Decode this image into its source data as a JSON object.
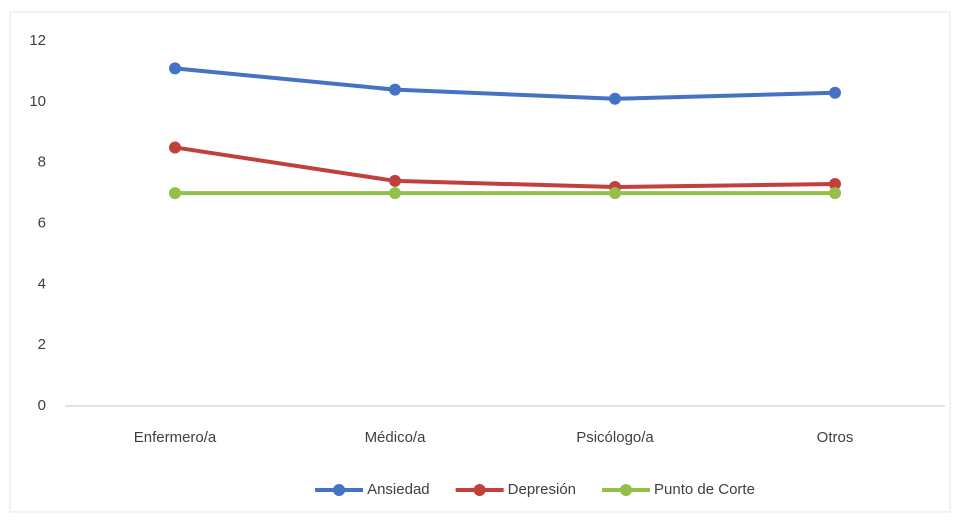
{
  "chart_data": {
    "type": "line",
    "categories": [
      "Enfermero/a",
      "Médico/a",
      "Psicólogo/a",
      "Otros"
    ],
    "series": [
      {
        "name": "Ansiedad",
        "color": "#4472c4",
        "values": [
          11.1,
          10.4,
          10.1,
          10.3
        ]
      },
      {
        "name": "Depresión",
        "color": "#c0403c",
        "values": [
          8.5,
          7.4,
          7.2,
          7.3
        ]
      },
      {
        "name": "Punto de Corte",
        "color": "#92c04a",
        "values": [
          7,
          7,
          7,
          7
        ]
      }
    ],
    "ylim": [
      0,
      12
    ],
    "yticks": [
      0,
      2,
      4,
      6,
      8,
      10,
      12
    ],
    "grid": false,
    "legend": "bottom"
  }
}
